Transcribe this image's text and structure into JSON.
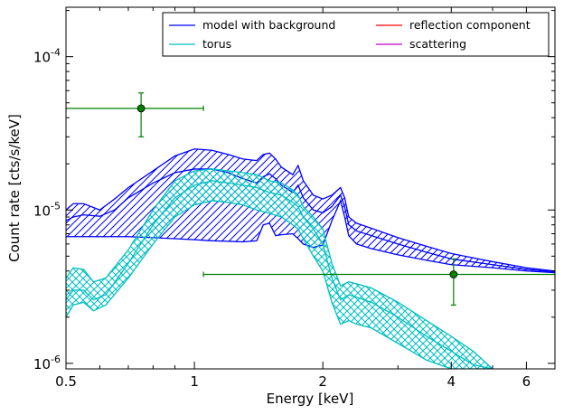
{
  "chart_data": {
    "type": "line",
    "xlabel": "Energy [keV]",
    "ylabel": "Count rate [cts/s/keV]",
    "xscale": "log",
    "yscale": "log",
    "xlim": [
      0.5,
      7.0
    ],
    "ylim": [
      9.2e-07,
      0.00021
    ],
    "x_ticks": [
      0.5,
      1,
      2,
      4,
      6
    ],
    "x_tick_labels": [
      "0.5",
      "1",
      "2",
      "4",
      "6"
    ],
    "y_ticks": [
      1e-06,
      1e-05,
      0.0001
    ],
    "y_tick_labels": [
      {
        "base": "10",
        "exp": "-6"
      },
      {
        "base": "10",
        "exp": "-5"
      },
      {
        "base": "10",
        "exp": "-4"
      }
    ],
    "grid": false,
    "legend": {
      "placement": "top-right",
      "columns": 2,
      "entries": [
        {
          "name": "model with background",
          "color": "#0000ff"
        },
        {
          "name": "torus",
          "color": "#00bfbf"
        },
        {
          "name": "reflection component",
          "color": "#ff0000"
        },
        {
          "name": "scattering",
          "color": "#bf00bf"
        }
      ]
    },
    "series": [
      {
        "name": "model with background",
        "color": "#0000ff",
        "style": "hatched band",
        "x": [
          0.5,
          0.52,
          0.55,
          0.6,
          0.65,
          0.7,
          0.8,
          0.9,
          1.0,
          1.1,
          1.2,
          1.3,
          1.4,
          1.45,
          1.5,
          1.55,
          1.6,
          1.7,
          1.75,
          1.8,
          1.9,
          2.0,
          2.1,
          2.2,
          2.25,
          2.3,
          2.4,
          2.6,
          3.0,
          3.5,
          4.0,
          5.0,
          6.0,
          7.0
        ],
        "upper": [
          1e-05,
          1.1e-05,
          1.1e-05,
          1e-05,
          1.18e-05,
          1.4e-05,
          1.8e-05,
          2.25e-05,
          2.5e-05,
          2.45e-05,
          2.3e-05,
          2.15e-05,
          2.1e-05,
          2.3e-05,
          2.35e-05,
          2.15e-05,
          1.9e-05,
          1.7e-05,
          1.95e-05,
          1.55e-05,
          1.25e-05,
          1.18e-05,
          1.25e-05,
          1.4e-05,
          1.2e-05,
          9e-06,
          8.2e-06,
          7.6e-06,
          6.6e-06,
          5.8e-06,
          5.2e-06,
          4.6e-06,
          4.2e-06,
          4e-06
        ],
        "middle": [
          8.5e-06,
          9e-06,
          9.3e-06,
          9.1e-06,
          1e-05,
          1.2e-05,
          1.5e-05,
          1.75e-05,
          1.85e-05,
          1.85e-05,
          1.75e-05,
          1.6e-05,
          1.5e-05,
          1.65e-05,
          1.72e-05,
          1.6e-05,
          1.45e-05,
          1.3e-05,
          1.45e-05,
          1.2e-05,
          1e-05,
          9.6e-06,
          1.05e-05,
          1.25e-05,
          1.05e-05,
          8e-06,
          7.3e-06,
          6.8e-06,
          6e-06,
          5.3e-06,
          4.8e-06,
          4.4e-06,
          4.1e-06,
          3.95e-06
        ],
        "lower": [
          6.7e-06,
          6.7e-06,
          6.7e-06,
          6.7e-06,
          6.7e-06,
          6.7e-06,
          6.6e-06,
          6.5e-06,
          6.4e-06,
          6.3e-06,
          6.25e-06,
          6.2e-06,
          6.3e-06,
          8e-06,
          8.2e-06,
          6.8e-06,
          6.9e-06,
          7e-06,
          6.5e-06,
          6e-06,
          5.7e-06,
          5.9e-06,
          8.5e-06,
          1.15e-05,
          9e-06,
          6.8e-06,
          6e-06,
          5.6e-06,
          5.1e-06,
          4.7e-06,
          4.4e-06,
          4.2e-06,
          4e-06,
          3.9e-06
        ]
      },
      {
        "name": "torus",
        "color": "#00bfbf",
        "style": "cross-hatched band",
        "x": [
          0.5,
          0.52,
          0.55,
          0.58,
          0.62,
          0.7,
          0.8,
          0.9,
          1.0,
          1.1,
          1.2,
          1.3,
          1.4,
          1.5,
          1.6,
          1.7,
          1.75,
          1.8,
          1.9,
          2.0,
          2.1,
          2.2,
          2.3,
          2.4,
          2.6,
          3.0,
          3.5,
          4.0,
          4.5,
          5.0
        ],
        "upper": [
          3.6e-06,
          4.2e-06,
          4.1e-06,
          3.4e-06,
          3.6e-06,
          5.5e-06,
          1e-05,
          1.55e-05,
          1.8e-05,
          1.85e-05,
          1.8e-05,
          1.75e-05,
          1.7e-05,
          1.55e-05,
          1.5e-05,
          1.35e-05,
          1.25e-05,
          1.05e-05,
          9e-06,
          7.5e-06,
          4.5e-06,
          3.2e-06,
          3.4e-06,
          3.3e-06,
          3.1e-06,
          2.5e-06,
          1.9e-06,
          1.5e-06,
          1.2e-06,
          9.2e-07
        ],
        "middle": [
          2.6e-06,
          3e-06,
          3e-06,
          2.6e-06,
          2.8e-06,
          4.5e-06,
          8e-06,
          1.2e-05,
          1.45e-05,
          1.55e-05,
          1.5e-05,
          1.45e-05,
          1.4e-05,
          1.3e-05,
          1.25e-05,
          1.12e-05,
          1.05e-05,
          9e-06,
          7.5e-06,
          6e-06,
          3.6e-06,
          2.6e-06,
          2.8e-06,
          2.7e-06,
          2.5e-06,
          2e-06,
          1.5e-06,
          1.2e-06,
          9.8e-07,
          9.2e-07
        ],
        "lower": [
          2e-06,
          2.4e-06,
          2.5e-06,
          2.2e-06,
          2.4e-06,
          3.6e-06,
          6e-06,
          9e-06,
          1.08e-05,
          1.15e-05,
          1.12e-05,
          1.08e-05,
          1e-05,
          9.5e-06,
          9e-06,
          8e-06,
          7.5e-06,
          6.5e-06,
          5e-06,
          4e-06,
          2.5e-06,
          1.8e-06,
          1.9e-06,
          1.8e-06,
          1.7e-06,
          1.35e-06,
          1.05e-06,
          9.2e-07,
          9.2e-07,
          9.2e-07
        ]
      }
    ],
    "data_points": [
      {
        "x": 0.75,
        "y": 4.6e-05,
        "xerr": [
          0.5,
          1.05
        ],
        "yerr": [
          3e-05,
          5.8e-05
        ],
        "color": "#007f00"
      },
      {
        "x": 4.05,
        "y": 3.8e-06,
        "xerr": [
          1.05,
          7.0
        ],
        "yerr": [
          2.4e-06,
          4.8e-06
        ],
        "color": "#007f00"
      }
    ]
  }
}
